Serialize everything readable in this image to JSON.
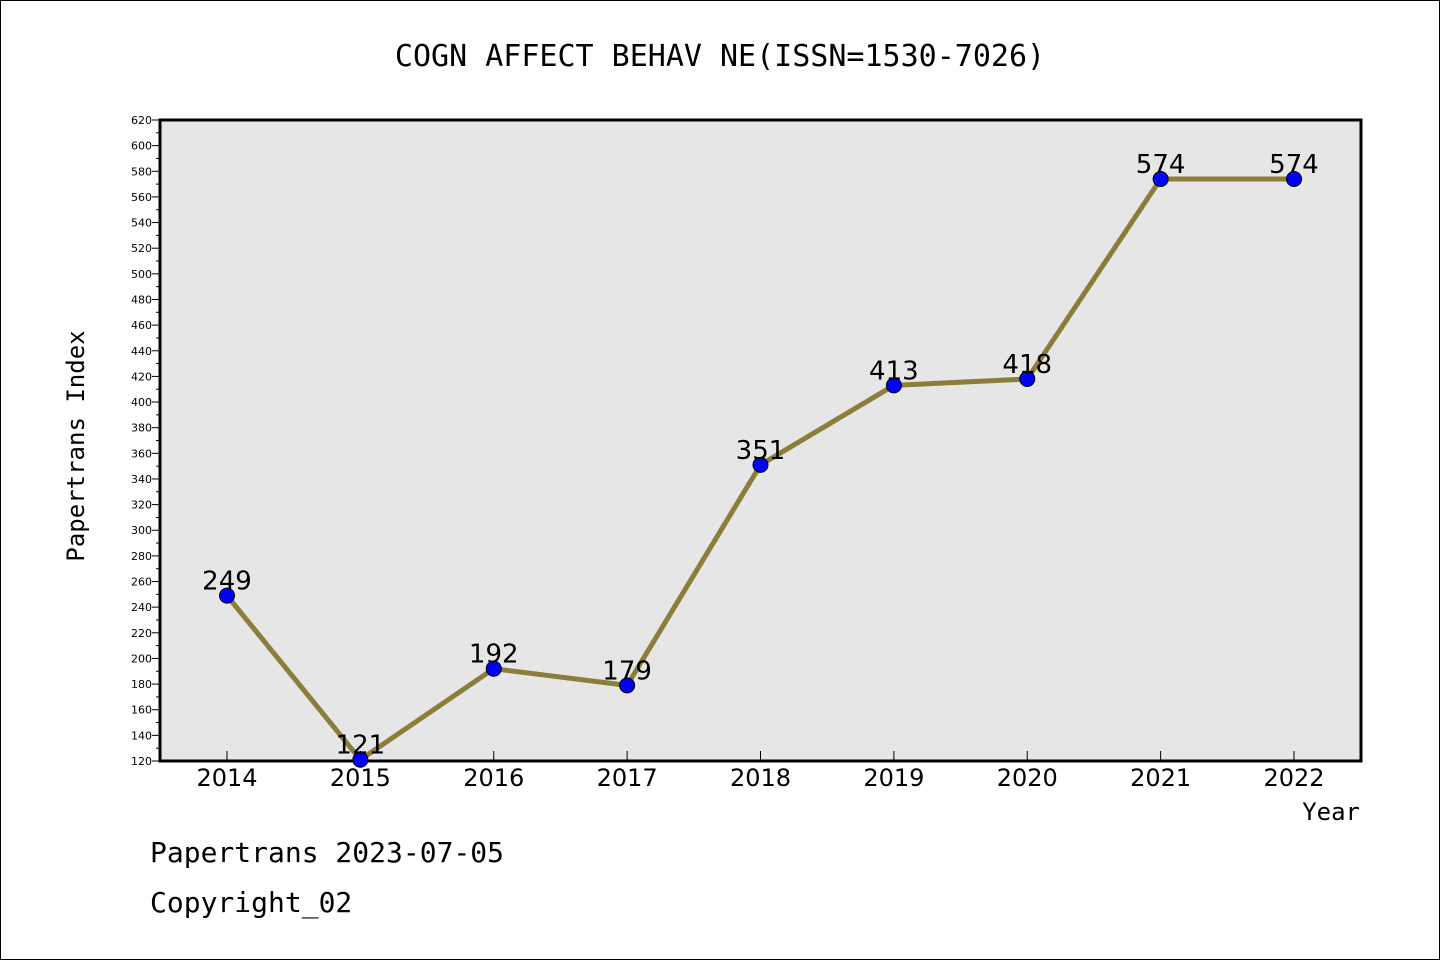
{
  "footer": {
    "line1": "Papertrans 2023-07-05",
    "line2": "Copyright_02"
  },
  "chart_data": {
    "type": "line",
    "title": "COGN AFFECT BEHAV NE(ISSN=1530-7026)",
    "xlabel": "Year",
    "ylabel": "Papertrans Index",
    "categories": [
      "2014",
      "2015",
      "2016",
      "2017",
      "2018",
      "2019",
      "2020",
      "2021",
      "2022"
    ],
    "series": [
      {
        "values": [
          249,
          121,
          192,
          179,
          351,
          413,
          418,
          574,
          574
        ]
      }
    ],
    "ylim": [
      120,
      620
    ],
    "yticks": [
      120,
      140,
      160,
      180,
      200,
      220,
      240,
      260,
      280,
      300,
      320,
      340,
      360,
      380,
      400,
      420,
      440,
      460,
      480,
      500,
      520,
      540,
      560,
      580,
      600,
      620
    ],
    "grid": false,
    "colors": {
      "line": "#8b7d3a",
      "marker": "#0000ff",
      "plot_background": "#e6e6e6"
    }
  }
}
